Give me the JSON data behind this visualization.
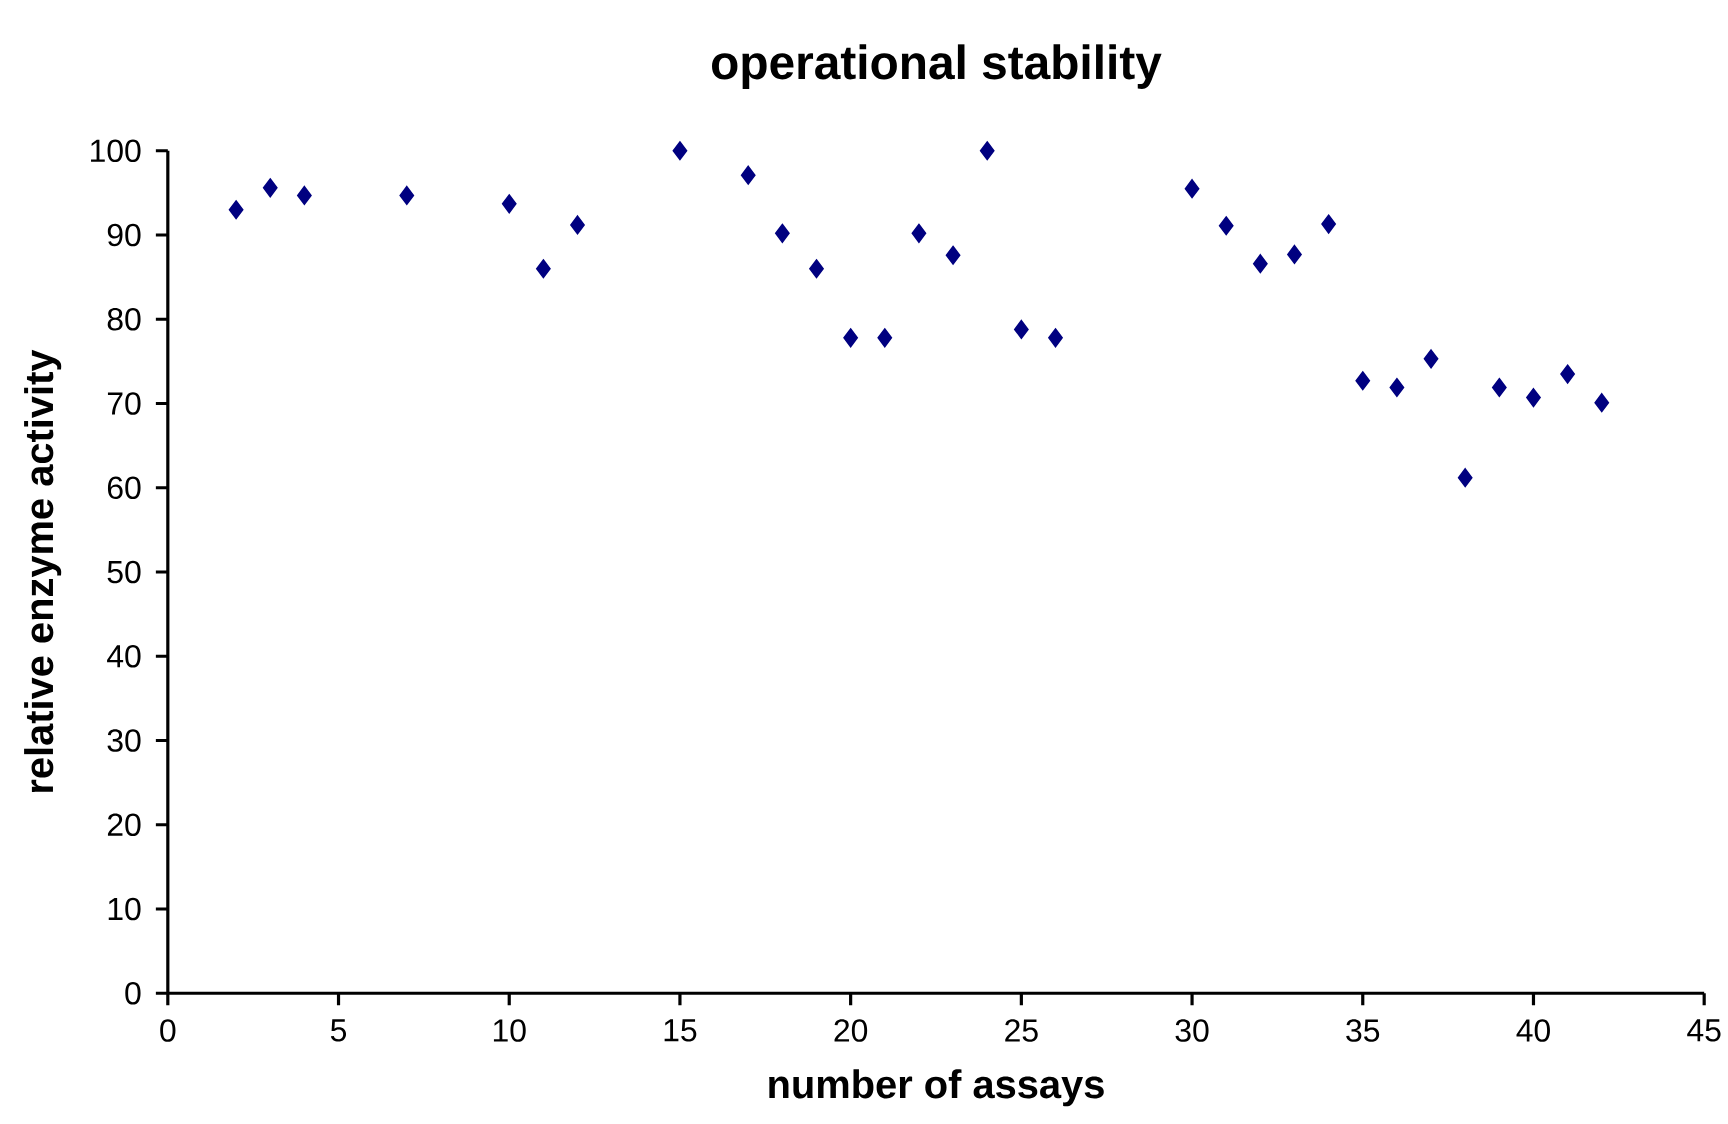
{
  "chart_data": {
    "type": "scatter",
    "title": "operational stability",
    "xlabel": "number of assays",
    "ylabel": "relative enzyme activity",
    "marker": "diamond",
    "color": "#000080",
    "x": [
      2,
      3,
      4,
      7,
      10,
      11,
      12,
      15,
      17,
      18,
      19,
      20,
      21,
      22,
      23,
      24,
      25,
      26,
      30,
      31,
      32,
      33,
      34,
      35,
      36,
      37,
      38,
      39,
      40,
      41,
      42
    ],
    "values": [
      93,
      95.6,
      94.7,
      94.7,
      93.7,
      86,
      91.2,
      100,
      97.1,
      90.2,
      86,
      77.8,
      77.8,
      90.2,
      87.6,
      100,
      78.8,
      77.8,
      95.5,
      91.1,
      86.6,
      87.7,
      91.3,
      72.7,
      71.9,
      75.3,
      61.2,
      71.9,
      70.7,
      73.5,
      70.1
    ],
    "xlim": [
      0,
      45
    ],
    "ylim": [
      0,
      100
    ],
    "xticks": [
      0,
      5,
      10,
      15,
      20,
      25,
      30,
      35,
      40,
      45
    ],
    "yticks": [
      0,
      10,
      20,
      30,
      40,
      50,
      60,
      70,
      80,
      90,
      100
    ]
  }
}
